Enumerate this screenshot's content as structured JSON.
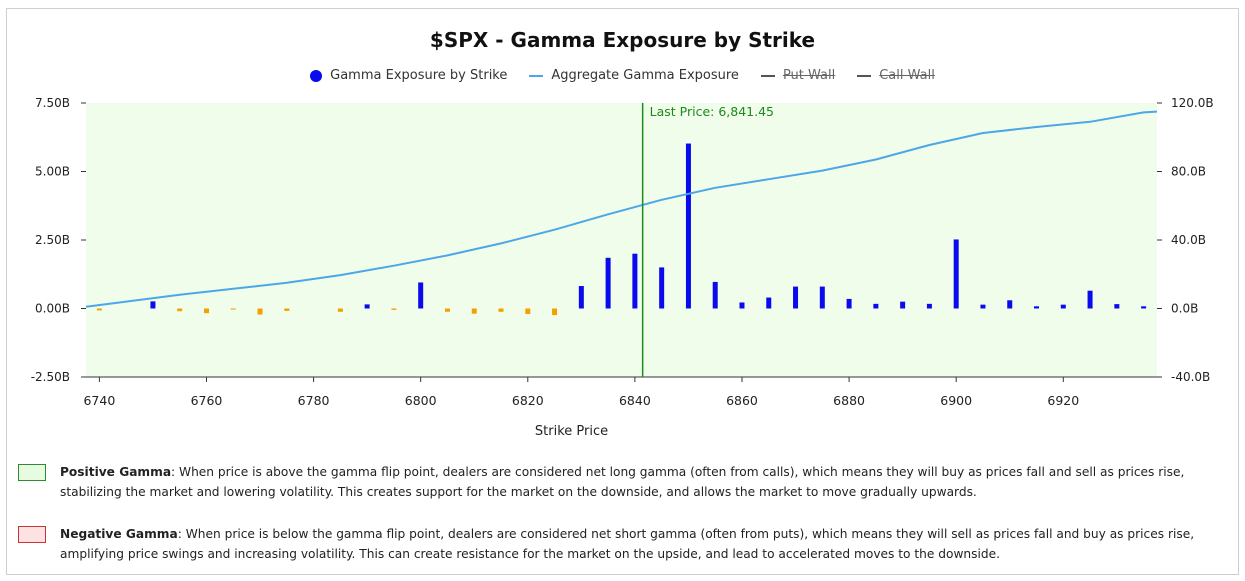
{
  "chart_data": {
    "type": "bar+line",
    "title": "$SPX - Gamma Exposure by Strike",
    "xlabel": "Strike Price",
    "legend": [
      {
        "label": "Gamma Exposure by Strike",
        "color": "#0a0aee",
        "marker": "dot",
        "hidden": false
      },
      {
        "label": "Aggregate Gamma Exposure",
        "color": "#4da6e8",
        "marker": "line",
        "hidden": false
      },
      {
        "label": "Put Wall",
        "color": "#555555",
        "marker": "line",
        "hidden": true
      },
      {
        "label": "Call Wall",
        "color": "#555555",
        "marker": "line",
        "hidden": true
      }
    ],
    "x_range": [
      6737.5,
      6937.5
    ],
    "x_ticks": [
      "6740",
      "6760",
      "6780",
      "6800",
      "6820",
      "6840",
      "6860",
      "6880",
      "6900",
      "6920"
    ],
    "x_tick_values": [
      6740,
      6760,
      6780,
      6800,
      6820,
      6840,
      6860,
      6880,
      6900,
      6920
    ],
    "y_left_range": [
      -2.5,
      7.5
    ],
    "y_left_ticks": [
      "7.50B",
      "5.00B",
      "2.50B",
      "0.00B",
      "-2.50B"
    ],
    "y_left_tick_values": [
      7.5,
      5.0,
      2.5,
      0.0,
      -2.5
    ],
    "y_right_range": [
      -40,
      120
    ],
    "y_right_ticks": [
      "120.0B",
      "80.0B",
      "40.0B",
      "0.0B",
      "-40.0B"
    ],
    "y_right_tick_values": [
      120,
      80,
      40,
      0,
      -40
    ],
    "last_price": {
      "value": 6841.45,
      "label": "Last Price: 6,841.45"
    },
    "gamma_series": {
      "name": "Gamma Exposure by Strike",
      "positive_color": "#0a0aee",
      "negative_color": "#f5a000",
      "strikes": [
        6740,
        6750,
        6755,
        6760,
        6765,
        6770,
        6775,
        6785,
        6790,
        6795,
        6800,
        6805,
        6810,
        6815,
        6820,
        6825,
        6830,
        6835,
        6840,
        6845,
        6850,
        6855,
        6860,
        6865,
        6870,
        6875,
        6880,
        6885,
        6890,
        6895,
        6900,
        6905,
        6910,
        6915,
        6920,
        6925,
        6930,
        6935
      ],
      "values": [
        -0.07,
        0.26,
        -0.1,
        -0.17,
        -0.04,
        -0.22,
        -0.09,
        -0.12,
        0.15,
        -0.05,
        0.95,
        -0.12,
        -0.19,
        -0.12,
        -0.2,
        -0.24,
        0.82,
        1.85,
        2.0,
        1.5,
        6.02,
        0.97,
        0.22,
        0.4,
        0.8,
        0.8,
        0.35,
        0.17,
        0.25,
        0.17,
        2.52,
        0.14,
        0.3,
        0.08,
        0.14,
        0.65,
        0.16,
        0.08
      ]
    },
    "aggregate_series": {
      "name": "Aggregate Gamma Exposure",
      "color": "#4da6e8",
      "x": [
        6737.5,
        6745,
        6755,
        6765,
        6775,
        6785,
        6795,
        6805,
        6815,
        6825,
        6835,
        6845,
        6855,
        6865,
        6875,
        6885,
        6895,
        6905,
        6915,
        6925,
        6935,
        6937.5
      ],
      "y": [
        1.0,
        4.0,
        8.0,
        11.5,
        15.0,
        19.5,
        25.0,
        31.0,
        38.0,
        46.0,
        55.0,
        63.5,
        70.5,
        75.5,
        80.5,
        87.0,
        95.5,
        102.5,
        106.0,
        109.0,
        114.5,
        115.0
      ]
    }
  },
  "notes": {
    "positive": {
      "heading": "Positive Gamma",
      "text": ": When price is above the gamma flip point, dealers are considered net long gamma (often from calls), which means they will buy as prices fall and sell as prices rise, stabilizing the market and lowering volatility. This creates support for the market on the downside, and allows the market to move gradually upwards.",
      "swatch_fill": "#e6fbe0",
      "swatch_border": "#2e8b2e"
    },
    "negative": {
      "heading": "Negative Gamma",
      "text": ": When price is below the gamma flip point, dealers are considered net short gamma (often from puts), which means they will sell as prices fall and buy as prices rise, amplifying price swings and increasing volatility. This can create resistance for the market on the upside, and lead to accelerated moves to the downside.",
      "swatch_fill": "#fde2e2",
      "swatch_border": "#cc3333"
    }
  },
  "colors": {
    "plot_background": "#f0fdea",
    "last_price_line": "#1c8a1c",
    "axis": "#333333"
  }
}
